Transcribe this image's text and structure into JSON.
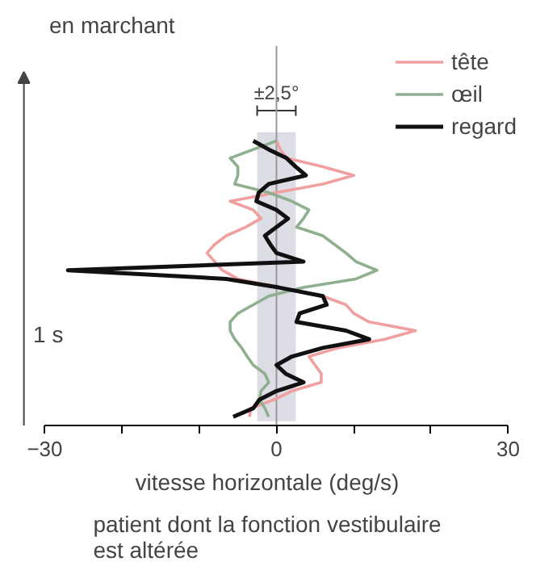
{
  "chart_data": {
    "type": "line",
    "orientation": "horizontal",
    "title": "en marchant",
    "xlabel": "vitesse horizontale (deg/s)",
    "annotations": [
      "1 s",
      "patient dont la fonction vestibulaire\nest altérée"
    ],
    "categories": [
      null,
      null,
      null,
      null,
      null,
      null,
      null,
      null,
      null,
      null,
      null,
      null,
      null,
      null,
      null,
      null,
      null,
      null,
      null,
      null,
      null,
      null,
      null,
      null,
      null,
      null,
      null,
      null,
      null,
      null,
      null,
      null,
      null
    ],
    "series": [
      {
        "name": "tête",
        "color": "#f0a0a0",
        "values": [
          0,
          0.5,
          1.3,
          6,
          10,
          6,
          0,
          -6,
          -3,
          -2,
          -4,
          -6.5,
          -8,
          -9,
          -8,
          -7,
          -5,
          0.3,
          6,
          9,
          10,
          12,
          18,
          14,
          8,
          4.2,
          5,
          5.8,
          5.8,
          2,
          -0.3,
          -3.3,
          -3.5
        ]
      },
      {
        "name": "œil",
        "color": "#8fb08f",
        "values": [
          0,
          -3,
          -6,
          -5,
          -5,
          -5.4,
          -1,
          2,
          4.2,
          3.5,
          2.6,
          6,
          7.5,
          9,
          10.3,
          13,
          10.3,
          3.5,
          -1,
          -3,
          -5,
          -6,
          -6,
          -5.4,
          -4.5,
          -3.8,
          -3,
          -1.5,
          -1,
          -2,
          -2.2,
          -1.5,
          -1
        ]
      },
      {
        "name": "regard",
        "color": "#111111",
        "values": [
          -3,
          -1,
          1.3,
          2.5,
          3.8,
          -1,
          -2.3,
          -2.6,
          0,
          1.5,
          0,
          -1.5,
          -0.8,
          0,
          3.5,
          -27,
          -6.5,
          0.3,
          6,
          6.5,
          3,
          2.6,
          9,
          12,
          6,
          2,
          0,
          1.2,
          3.5,
          0,
          -2.2,
          -3,
          -5.6
        ]
      }
    ],
    "xlim": [
      -30,
      30
    ],
    "xticks": [
      -30,
      {
        "value": -20,
        "label": null
      },
      {
        "value": -10,
        "label": null
      },
      0,
      {
        "value": 10,
        "label": null
      },
      {
        "value": 20,
        "label": null
      },
      30
    ],
    "bands": [
      {
        "axis": "x",
        "from": -2.5,
        "to": 2.5,
        "label": "±2,5°",
        "color": "#d4d4e0"
      }
    ],
    "ref_lines": [
      {
        "axis": "x",
        "value": 0,
        "color": "#999999"
      }
    ],
    "legend": "top right",
    "grid": false,
    "tick_labels": "x"
  }
}
